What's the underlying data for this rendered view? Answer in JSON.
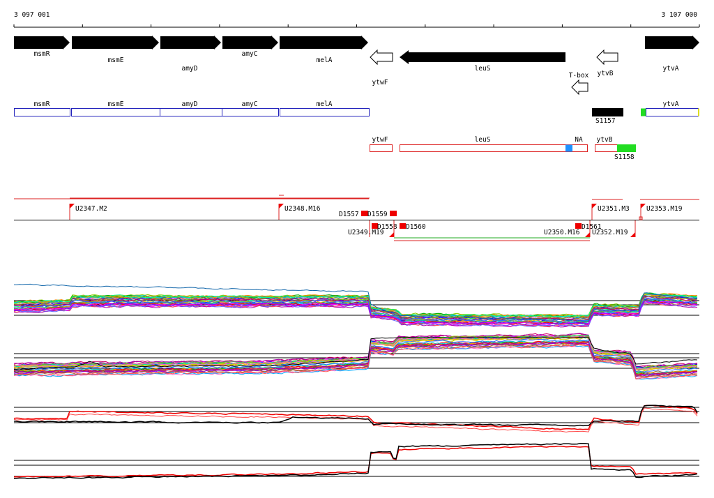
{
  "axis": {
    "start_label": "3 097 001",
    "end_label": "3 107 000"
  },
  "gene_arrows": [
    {
      "label": "msmR",
      "strand": "+",
      "filled": true
    },
    {
      "label": "msmE",
      "strand": "+",
      "filled": true
    },
    {
      "label": "amyD",
      "strand": "+",
      "filled": true
    },
    {
      "label": "amyC",
      "strand": "+",
      "filled": true
    },
    {
      "label": "melA",
      "strand": "+",
      "filled": true
    },
    {
      "label": "ytwF",
      "strand": "-",
      "filled": false
    },
    {
      "label": "leuS",
      "strand": "-",
      "filled": true
    },
    {
      "label": "T-box",
      "strand": "-",
      "filled": false
    },
    {
      "label": "ytvB",
      "strand": "-",
      "filled": false
    },
    {
      "label": "ytvA",
      "strand": "+",
      "filled": true
    }
  ],
  "forward_transcripts": [
    {
      "label": "msmR"
    },
    {
      "label": "msmE"
    },
    {
      "label": "amyD"
    },
    {
      "label": "amyC"
    },
    {
      "label": "melA"
    },
    {
      "label": "ytvA"
    }
  ],
  "reverse_transcripts": [
    {
      "label": "ytwF"
    },
    {
      "label": "leuS"
    },
    {
      "label": "NA"
    },
    {
      "label": "ytvB"
    }
  ],
  "signatures": [
    {
      "label": "S1157",
      "color": "#000000"
    },
    {
      "label": "S1158",
      "color": "#22dd22"
    }
  ],
  "forward_segments": [
    {
      "label": "U2347.M2"
    },
    {
      "label": "U2348.M16"
    },
    {
      "label": "U2351.M3"
    },
    {
      "label": "U2353.M19"
    }
  ],
  "breakpoints": [
    {
      "label": "D1557"
    },
    {
      "label": "D1559"
    },
    {
      "label": "D1558"
    },
    {
      "label": "D1560"
    },
    {
      "label": "D1561"
    }
  ],
  "reverse_segments": [
    {
      "label": "U2349.M19"
    },
    {
      "label": "U2350.M16"
    },
    {
      "label": "U2352.M19"
    }
  ],
  "colors": {
    "forward": "#2222bb",
    "reverse": "#dd2222",
    "marker": "#ee0000",
    "na_box": "#1e90ff",
    "ytvA_left": "#22dd22",
    "ytvA_right": "#dddd22"
  }
}
